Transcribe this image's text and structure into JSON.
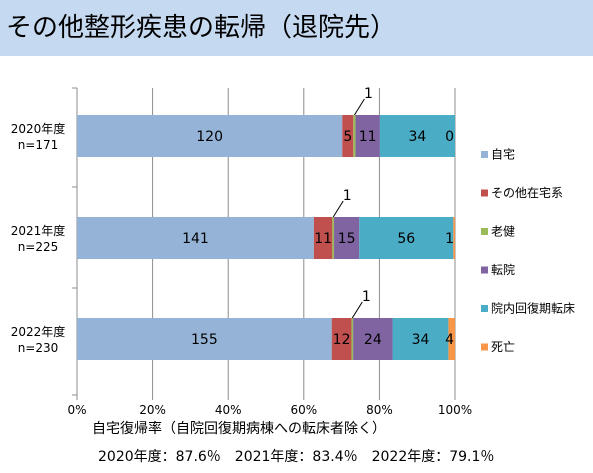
{
  "page": {
    "title": "その他整形疾患の転帰（退院先）",
    "footer": "2020年度：87.6％　2021年度：83.4％　2022年度：79.1％"
  },
  "chart_data": {
    "type": "bar",
    "orientation": "horizontal",
    "stacked": "percent",
    "categories": [
      {
        "label": "2020年度",
        "sublabel": "n=171"
      },
      {
        "label": "2021年度",
        "sublabel": "n=225"
      },
      {
        "label": "2022年度",
        "sublabel": "n=230"
      }
    ],
    "series": [
      {
        "name": "自宅",
        "color": "#95b3d7",
        "values": [
          120,
          141,
          155
        ]
      },
      {
        "name": "その他在宅系",
        "color": "#c0504d",
        "values": [
          5,
          11,
          12
        ]
      },
      {
        "name": "老健",
        "color": "#9bbb59",
        "values": [
          1,
          1,
          1
        ]
      },
      {
        "name": "転院",
        "color": "#8064a2",
        "values": [
          11,
          15,
          24
        ]
      },
      {
        "name": "院内回復期転床",
        "color": "#4bacc6",
        "values": [
          34,
          56,
          34
        ]
      },
      {
        "name": "死亡",
        "color": "#f79646",
        "values": [
          0,
          1,
          4
        ]
      }
    ],
    "xlim": [
      0,
      100
    ],
    "xticks": [
      "0%",
      "20%",
      "40%",
      "60%",
      "80%",
      "100%"
    ],
    "xlabel": "自宅復帰率（自院回復期病棟への転床者除く）",
    "ylabel": "",
    "grid": true,
    "legend": "right"
  }
}
